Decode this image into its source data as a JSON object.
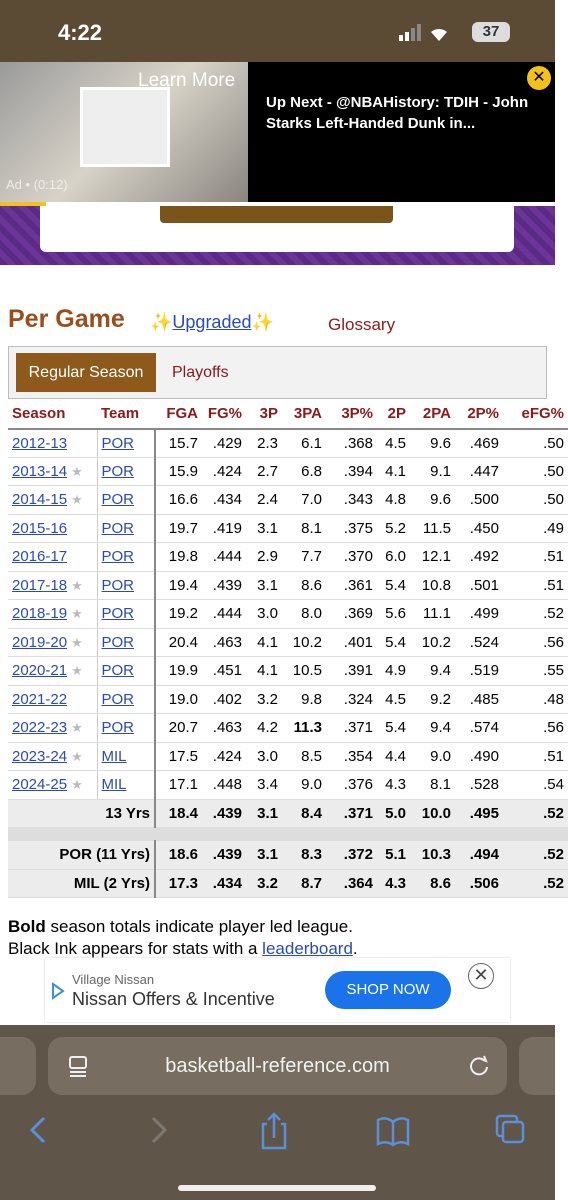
{
  "status_bar": {
    "time": "4:22",
    "battery": "37"
  },
  "video_ad": {
    "learn_more": "Learn More",
    "ad_label": "Ad • (0:12)",
    "up_next": "Up Next - @NBAHistory: TDIH - John Starks Left-Handed Dunk in..."
  },
  "section": {
    "title": "Per Game",
    "upgraded_prefix": "✨",
    "upgraded": "Upgraded",
    "upgraded_suffix": "✨",
    "glossary": "Glossary"
  },
  "tabs": [
    "Regular Season",
    "Playoffs"
  ],
  "table": {
    "star_symbol": "★",
    "columns": [
      "Season",
      "Team",
      "FGA",
      "FG%",
      "3P",
      "3PA",
      "3P%",
      "2P",
      "2PA",
      "2P%",
      "eFG%"
    ],
    "rows": [
      {
        "season": "2012-13",
        "all_star": false,
        "team": "POR",
        "stats": [
          "15.7",
          ".429",
          "2.3",
          "6.1",
          ".368",
          "4.5",
          "9.6",
          ".469",
          ".50"
        ]
      },
      {
        "season": "2013-14",
        "all_star": true,
        "team": "POR",
        "stats": [
          "15.9",
          ".424",
          "2.7",
          "6.8",
          ".394",
          "4.1",
          "9.1",
          ".447",
          ".50"
        ]
      },
      {
        "season": "2014-15",
        "all_star": true,
        "team": "POR",
        "stats": [
          "16.6",
          ".434",
          "2.4",
          "7.0",
          ".343",
          "4.8",
          "9.6",
          ".500",
          ".50"
        ]
      },
      {
        "season": "2015-16",
        "all_star": false,
        "team": "POR",
        "stats": [
          "19.7",
          ".419",
          "3.1",
          "8.1",
          ".375",
          "5.2",
          "11.5",
          ".450",
          ".49"
        ]
      },
      {
        "season": "2016-17",
        "all_star": false,
        "team": "POR",
        "stats": [
          "19.8",
          ".444",
          "2.9",
          "7.7",
          ".370",
          "6.0",
          "12.1",
          ".492",
          ".51"
        ]
      },
      {
        "season": "2017-18",
        "all_star": true,
        "team": "POR",
        "stats": [
          "19.4",
          ".439",
          "3.1",
          "8.6",
          ".361",
          "5.4",
          "10.8",
          ".501",
          ".51"
        ]
      },
      {
        "season": "2018-19",
        "all_star": true,
        "team": "POR",
        "stats": [
          "19.2",
          ".444",
          "3.0",
          "8.0",
          ".369",
          "5.6",
          "11.1",
          ".499",
          ".52"
        ]
      },
      {
        "season": "2019-20",
        "all_star": true,
        "team": "POR",
        "stats": [
          "20.4",
          ".463",
          "4.1",
          "10.2",
          ".401",
          "5.4",
          "10.2",
          ".524",
          ".56"
        ]
      },
      {
        "season": "2020-21",
        "all_star": true,
        "team": "POR",
        "stats": [
          "19.9",
          ".451",
          "4.1",
          "10.5",
          ".391",
          "4.9",
          "9.4",
          ".519",
          ".55"
        ]
      },
      {
        "season": "2021-22",
        "all_star": false,
        "team": "POR",
        "stats": [
          "19.0",
          ".402",
          "3.2",
          "9.8",
          ".324",
          "4.5",
          "9.2",
          ".485",
          ".48"
        ]
      },
      {
        "season": "2022-23",
        "all_star": true,
        "team": "POR",
        "stats": [
          "20.7",
          ".463",
          "4.2",
          {
            "text": "11.3",
            "bold": true
          },
          ".371",
          "5.4",
          "9.4",
          ".574",
          ".56"
        ]
      },
      {
        "season": "2023-24",
        "all_star": true,
        "team": "MIL",
        "stats": [
          "17.5",
          ".424",
          "3.0",
          "8.5",
          ".354",
          "4.4",
          "9.0",
          ".490",
          ".51"
        ]
      },
      {
        "season": "2024-25",
        "all_star": true,
        "team": "MIL",
        "stats": [
          "17.1",
          ".448",
          "3.4",
          "9.0",
          ".376",
          "4.3",
          "8.1",
          ".528",
          ".54"
        ]
      }
    ],
    "totals": [
      {
        "label": "13 Yrs",
        "stats": [
          "18.4",
          ".439",
          "3.1",
          "8.4",
          ".371",
          "5.0",
          "10.0",
          ".495",
          ".52"
        ]
      },
      {
        "label": "POR (11 Yrs)",
        "stats": [
          "18.6",
          ".439",
          "3.1",
          "8.3",
          ".372",
          "5.1",
          "10.3",
          ".494",
          ".52"
        ]
      },
      {
        "label": "MIL (2 Yrs)",
        "stats": [
          "17.3",
          ".434",
          "3.2",
          "8.7",
          ".364",
          "4.3",
          "8.6",
          ".506",
          ".52"
        ]
      }
    ]
  },
  "footnote": {
    "bold": "Bold",
    "line1": " season totals indicate player led league.",
    "line2": "Black Ink appears for stats with a ",
    "link": "leaderboard",
    "end": "."
  },
  "banner_ad": {
    "advertiser": "Village Nissan",
    "headline": "Nissan Offers & Incentive",
    "button": "SHOP NOW"
  },
  "browser": {
    "url": "basketball-reference.com"
  }
}
